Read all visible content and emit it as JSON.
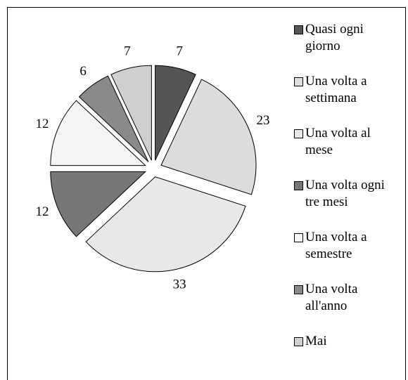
{
  "chart_data": {
    "type": "pie",
    "categories": [
      "Quasi ogni giorno",
      "Una volta a settimana",
      "Una volta al mese",
      "Una volta ogni tre mesi",
      "Una volta a semestre",
      "Una volta all'anno",
      "Mai"
    ],
    "values": [
      7,
      23,
      33,
      12,
      12,
      6,
      7
    ],
    "colors": [
      "#555555",
      "#dcdcdc",
      "#e8e8e8",
      "#777777",
      "#f4f4f4",
      "#8a8a8a",
      "#cfcfcf"
    ]
  }
}
